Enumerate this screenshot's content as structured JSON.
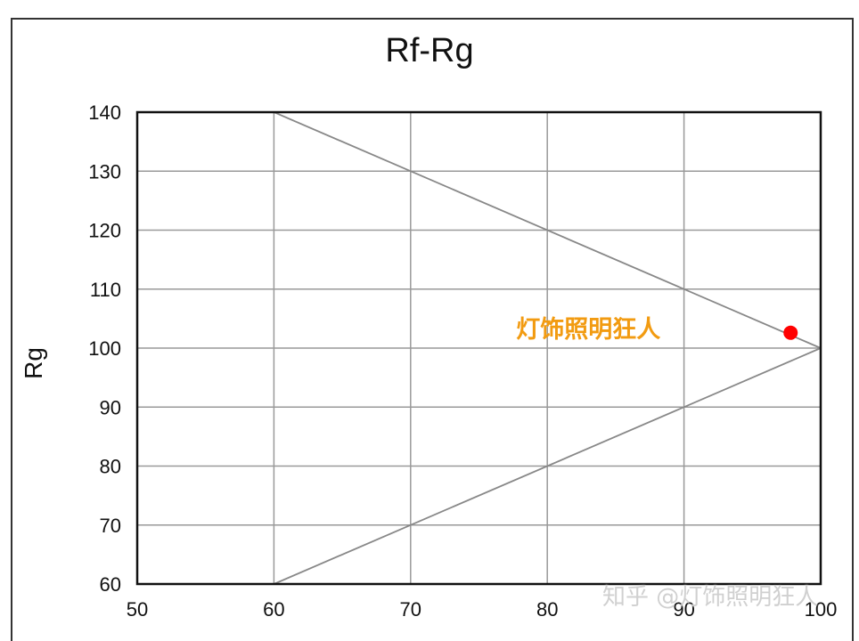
{
  "chart_data": {
    "type": "scatter",
    "title": "Rf-Rg",
    "xlabel": "",
    "ylabel": "Rg",
    "xlim": [
      50,
      100
    ],
    "ylim": [
      60,
      140
    ],
    "xticks": [
      50,
      60,
      70,
      80,
      90,
      100
    ],
    "yticks": [
      60,
      70,
      80,
      90,
      100,
      110,
      120,
      130,
      140
    ],
    "grid": true,
    "boundary_lines": [
      {
        "x": [
          60,
          100
        ],
        "y": [
          140,
          100
        ]
      },
      {
        "x": [
          60,
          100
        ],
        "y": [
          60,
          100
        ]
      }
    ],
    "series": [
      {
        "x": [
          97.8
        ],
        "y": [
          102.6
        ],
        "color": "#ff0000"
      }
    ],
    "annotations": [
      {
        "text": "灯饰照明狂人",
        "x": 83,
        "y": 103.3,
        "color": "#f29b11"
      }
    ]
  },
  "watermark": "知乎 @灯饰照明狂人",
  "colors": {
    "grid": "#999999",
    "axis": "#111111",
    "point": "#ff0000",
    "annotation": "#f29b11"
  }
}
